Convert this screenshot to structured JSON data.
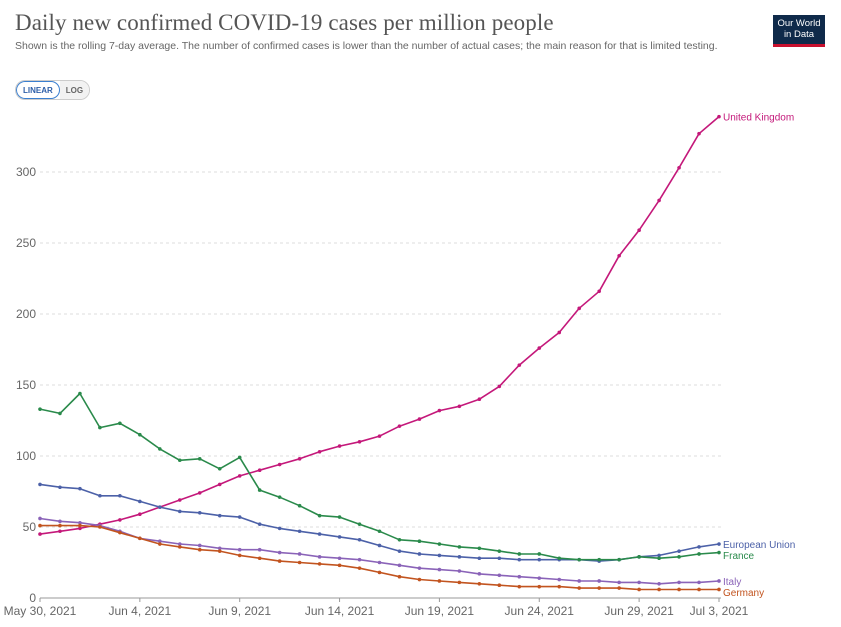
{
  "header": {
    "title": "Daily new confirmed COVID-19 cases per million people",
    "subtitle": "Shown is the rolling 7-day average. The number of confirmed cases is lower than the number of actual cases; the main reason for that is limited testing.",
    "logo_line1": "Our World",
    "logo_line2": "in Data"
  },
  "scale_toggle": {
    "linear_label": "LINEAR",
    "log_label": "LOG",
    "selected": "linear"
  },
  "chart_data": {
    "type": "line",
    "title": "Daily new confirmed COVID-19 cases per million people",
    "xlabel": "",
    "ylabel": "",
    "ylim": [
      0,
      340
    ],
    "yticks": [
      0,
      50,
      100,
      150,
      200,
      250,
      300
    ],
    "grid": true,
    "x_start": "May 30, 2021",
    "x_end": "Jul 3, 2021",
    "x_tick_labels": [
      "May 30, 2021",
      "Jun 4, 2021",
      "Jun 9, 2021",
      "Jun 14, 2021",
      "Jun 19, 2021",
      "Jun 24, 2021",
      "Jun 29, 2021",
      "Jul 3, 2021"
    ],
    "x_tick_indices": [
      0,
      5,
      10,
      15,
      20,
      25,
      30,
      34
    ],
    "x": [
      "May 30",
      "May 31",
      "Jun 1",
      "Jun 2",
      "Jun 3",
      "Jun 4",
      "Jun 5",
      "Jun 6",
      "Jun 7",
      "Jun 8",
      "Jun 9",
      "Jun 10",
      "Jun 11",
      "Jun 12",
      "Jun 13",
      "Jun 14",
      "Jun 15",
      "Jun 16",
      "Jun 17",
      "Jun 18",
      "Jun 19",
      "Jun 20",
      "Jun 21",
      "Jun 22",
      "Jun 23",
      "Jun 24",
      "Jun 25",
      "Jun 26",
      "Jun 27",
      "Jun 28",
      "Jun 29",
      "Jun 30",
      "Jul 1",
      "Jul 2",
      "Jul 3"
    ],
    "series": [
      {
        "name": "United Kingdom",
        "color": "#c4187a",
        "values": [
          45,
          47,
          49,
          52,
          55,
          59,
          64,
          69,
          74,
          80,
          86,
          90,
          94,
          98,
          103,
          107,
          110,
          114,
          121,
          126,
          132,
          135,
          140,
          149,
          164,
          176,
          187,
          204,
          216,
          241,
          259,
          280,
          303,
          327,
          339
        ]
      },
      {
        "name": "European Union",
        "color": "#4c61a8",
        "values": [
          80,
          78,
          77,
          72,
          72,
          68,
          64,
          61,
          60,
          58,
          57,
          52,
          49,
          47,
          45,
          43,
          41,
          37,
          33,
          31,
          30,
          29,
          28,
          28,
          27,
          27,
          27,
          27,
          26,
          27,
          29,
          30,
          33,
          36,
          38
        ]
      },
      {
        "name": "France",
        "color": "#2a8a4b",
        "values": [
          133,
          130,
          144,
          120,
          123,
          115,
          105,
          97,
          98,
          91,
          99,
          76,
          71,
          65,
          58,
          57,
          52,
          47,
          41,
          40,
          38,
          36,
          35,
          33,
          31,
          31,
          28,
          27,
          27,
          27,
          29,
          28,
          29,
          31,
          32
        ]
      },
      {
        "name": "Italy",
        "color": "#8a63b8",
        "values": [
          56,
          54,
          53,
          51,
          47,
          42,
          40,
          38,
          37,
          35,
          34,
          34,
          32,
          31,
          29,
          28,
          27,
          25,
          23,
          21,
          20,
          19,
          17,
          16,
          15,
          14,
          13,
          12,
          12,
          11,
          11,
          10,
          11,
          11,
          12
        ]
      },
      {
        "name": "Germany",
        "color": "#c2541f",
        "values": [
          51,
          51,
          51,
          50,
          46,
          42,
          38,
          36,
          34,
          33,
          30,
          28,
          26,
          25,
          24,
          23,
          21,
          18,
          15,
          13,
          12,
          11,
          10,
          9,
          8,
          8,
          8,
          7,
          7,
          7,
          6,
          6,
          6,
          6,
          6
        ]
      }
    ]
  }
}
